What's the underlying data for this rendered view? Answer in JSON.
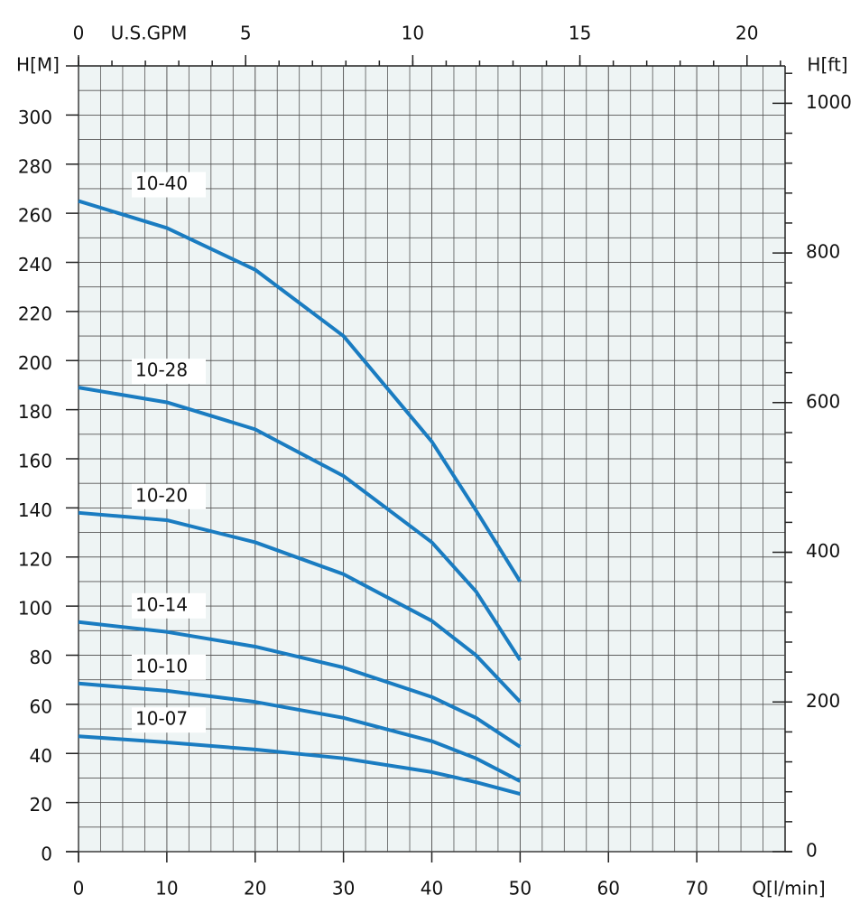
{
  "chart_data": {
    "type": "line",
    "x_label": "Q[l/min]",
    "y_label": "H[M]",
    "x2_label": "U.S.GPM",
    "y2_label": "H[ft]",
    "x": [
      0,
      10,
      20,
      30,
      40,
      45,
      50
    ],
    "xlim": [
      0,
      80
    ],
    "xticks": [
      0,
      10,
      20,
      30,
      40,
      50,
      60,
      70
    ],
    "ylim": [
      0,
      320
    ],
    "yticks": [
      0,
      20,
      40,
      60,
      80,
      100,
      120,
      140,
      160,
      180,
      200,
      220,
      240,
      260,
      280,
      300
    ],
    "x2lim": [
      0,
      21.14
    ],
    "x2ticks": [
      0,
      5,
      10,
      15,
      20
    ],
    "y2lim": [
      0,
      1049.9
    ],
    "y2ticks": [
      0,
      200,
      400,
      600,
      800,
      1000
    ],
    "grid": true,
    "series": [
      {
        "name": "10-40",
        "color": "#1a7cc1",
        "values": [
          265,
          254,
          237,
          210,
          167,
          139,
          110
        ]
      },
      {
        "name": "10-28",
        "color": "#1a7cc1",
        "values": [
          189,
          183,
          172,
          153,
          126,
          106,
          78
        ]
      },
      {
        "name": "10-20",
        "color": "#1a7cc1",
        "values": [
          138,
          135,
          126,
          113,
          94,
          80,
          61
        ]
      },
      {
        "name": "10-14",
        "color": "#1a7cc1",
        "values": [
          93.5,
          89.5,
          83.5,
          75,
          63,
          54.5,
          42.7
        ]
      },
      {
        "name": "10-10",
        "color": "#1a7cc1",
        "values": [
          68.5,
          65.5,
          61,
          54.5,
          45,
          38,
          28.7
        ]
      },
      {
        "name": "10-07",
        "color": "#1a7cc1",
        "values": [
          47,
          44.5,
          41.6,
          38,
          32.4,
          28.3,
          23.5
        ]
      }
    ]
  }
}
